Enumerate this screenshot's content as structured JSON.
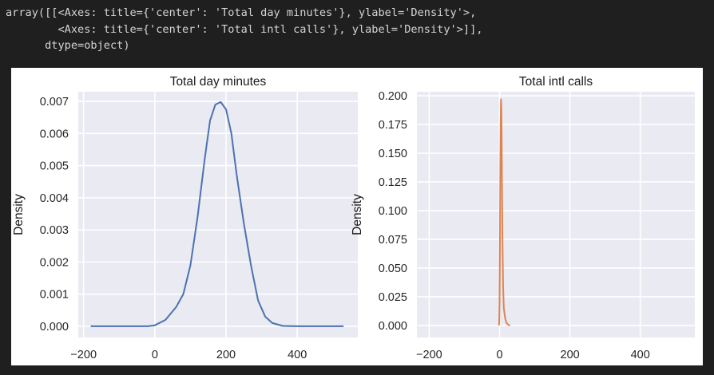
{
  "output": {
    "lines": [
      "array([[<Axes: title={'center': 'Total day minutes'}, ylabel='Density'>,",
      "        <Axes: title={'center': 'Total intl calls'}, ylabel='Density'>]],",
      "      dtype=object)"
    ]
  },
  "colors": {
    "background": "#1f1f1f",
    "plot_bg": "#eaeaf2",
    "grid": "#ffffff",
    "series_1": "#4c72b0",
    "series_2": "#dd8452"
  },
  "chart_data": [
    {
      "type": "line",
      "title": "Total day minutes",
      "xlabel": "",
      "ylabel": "Density",
      "xlim": [
        -215,
        570
      ],
      "ylim": [
        -0.00035,
        0.0073
      ],
      "xticks": [
        -200,
        0,
        200,
        400
      ],
      "xtick_labels": [
        "−200",
        "0",
        "200",
        "400"
      ],
      "yticks": [
        0.0,
        0.001,
        0.002,
        0.003,
        0.004,
        0.005,
        0.006,
        0.007
      ],
      "ytick_labels": [
        "0.000",
        "0.001",
        "0.002",
        "0.003",
        "0.004",
        "0.005",
        "0.006",
        "0.007"
      ],
      "grid": true,
      "color": "#4c72b0",
      "series": [
        {
          "x": [
            -180,
            -100,
            -20,
            0,
            30,
            60,
            80,
            100,
            120,
            140,
            155,
            170,
            185,
            200,
            215,
            230,
            250,
            270,
            290,
            310,
            330,
            360,
            400,
            450,
            530
          ],
          "y": [
            0,
            0,
            0,
            3e-05,
            0.0002,
            0.0006,
            0.001,
            0.0019,
            0.0034,
            0.0052,
            0.0064,
            0.0069,
            0.00698,
            0.00675,
            0.006,
            0.0047,
            0.0032,
            0.0019,
            0.0008,
            0.0003,
            0.0001,
            1e-05,
            0,
            0,
            0
          ]
        }
      ]
    },
    {
      "type": "line",
      "title": "Total intl calls",
      "xlabel": "",
      "ylabel": "Density",
      "xlim": [
        -235,
        555
      ],
      "ylim": [
        -0.0105,
        0.2035
      ],
      "xticks": [
        -200,
        0,
        200,
        400
      ],
      "xtick_labels": [
        "−200",
        "0",
        "200",
        "400"
      ],
      "yticks": [
        0.0,
        0.025,
        0.05,
        0.075,
        0.1,
        0.125,
        0.15,
        0.175,
        0.2
      ],
      "ytick_labels": [
        "0.000",
        "0.025",
        "0.050",
        "0.075",
        "0.100",
        "0.125",
        "0.150",
        "0.175",
        "0.200"
      ],
      "grid": true,
      "color": "#dd8452",
      "series": [
        {
          "x": [
            -2,
            -1,
            0,
            1,
            2,
            3,
            4,
            5,
            6,
            7,
            8,
            10,
            12,
            16,
            20,
            25,
            30
          ],
          "y": [
            0,
            0.003,
            0.02,
            0.07,
            0.13,
            0.175,
            0.197,
            0.19,
            0.16,
            0.12,
            0.08,
            0.035,
            0.015,
            0.006,
            0.002,
            0.0005,
            0
          ]
        }
      ]
    }
  ]
}
